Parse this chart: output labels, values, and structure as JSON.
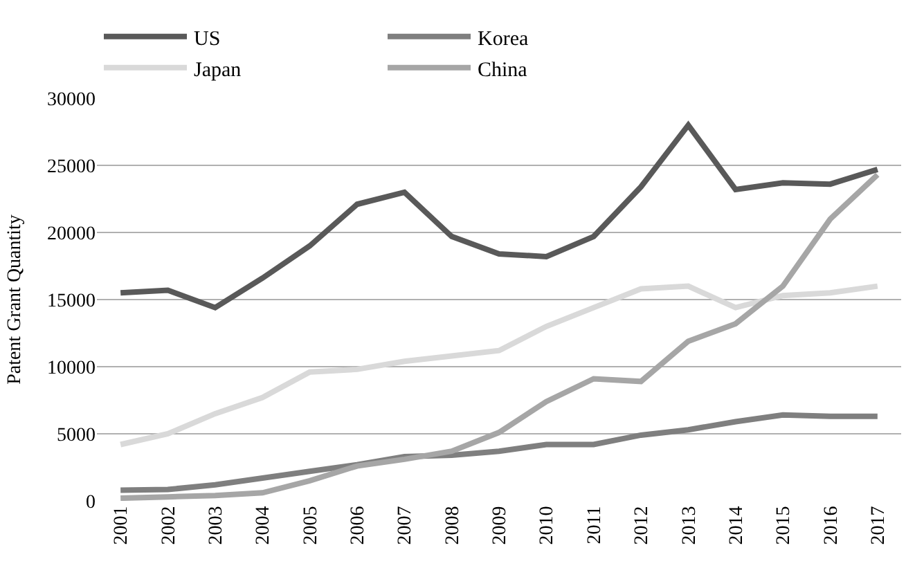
{
  "chart_data": {
    "type": "line",
    "ylabel": "Patent Grant Quantity",
    "categories": [
      "2001",
      "2002",
      "2003",
      "2004",
      "2005",
      "2006",
      "2007",
      "2008",
      "2009",
      "2010",
      "2011",
      "2012",
      "2013",
      "2014",
      "2015",
      "2016",
      "2017"
    ],
    "series": [
      {
        "name": "US",
        "color": "#595959",
        "values": [
          15500,
          15700,
          14400,
          16600,
          19000,
          22100,
          23000,
          19700,
          18400,
          18200,
          19700,
          23400,
          28000,
          23200,
          23700,
          23600,
          24700
        ]
      },
      {
        "name": "Korea",
        "color": "#7f7f7f",
        "values": [
          800,
          850,
          1200,
          1700,
          2200,
          2700,
          3300,
          3400,
          3700,
          4200,
          4200,
          4900,
          5300,
          5900,
          6400,
          6300,
          6300
        ]
      },
      {
        "name": "Japan",
        "color": "#d9d9d9",
        "values": [
          4200,
          5000,
          6500,
          7700,
          9600,
          9800,
          10400,
          10800,
          11200,
          13000,
          14400,
          15800,
          16000,
          14400,
          15300,
          15500,
          16000
        ]
      },
      {
        "name": "China",
        "color": "#a6a6a6",
        "values": [
          200,
          300,
          400,
          600,
          1500,
          2600,
          3100,
          3700,
          5100,
          7400,
          9100,
          8900,
          11900,
          13200,
          16000,
          21000,
          24300
        ]
      }
    ],
    "ylim": [
      0,
      30000
    ],
    "yticks": [
      0,
      5000,
      10000,
      15000,
      20000,
      25000,
      30000
    ],
    "grid": "y",
    "legend": "top",
    "marker": "none",
    "line_style": "solid"
  }
}
